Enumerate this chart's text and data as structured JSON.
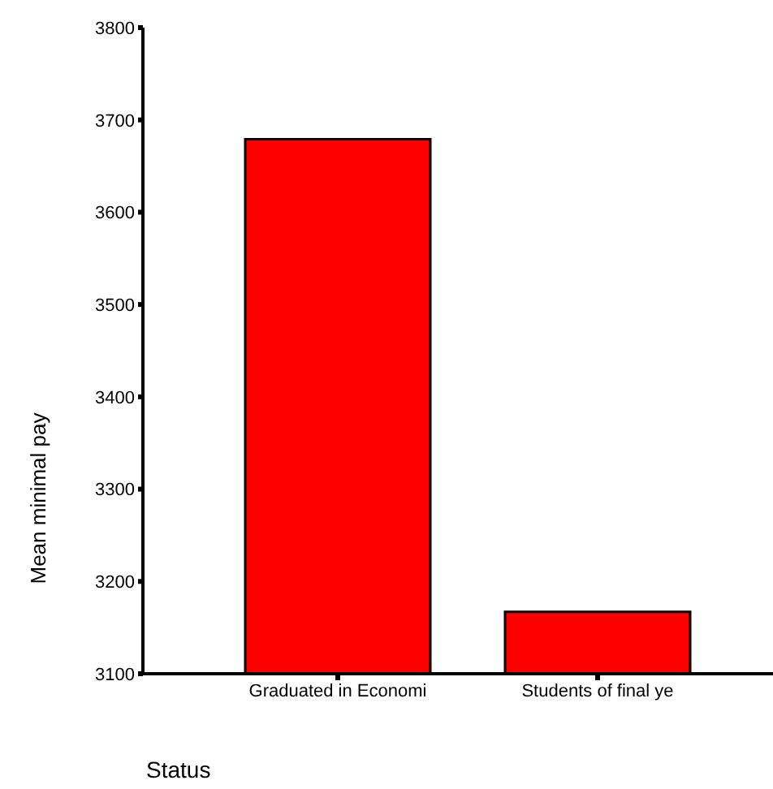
{
  "chart_data": {
    "type": "bar",
    "categories": [
      "Graduated in Economi",
      "Students of final ye"
    ],
    "values": [
      3679,
      3167
    ],
    "color": "#ff0000",
    "xlabel": "Status",
    "ylabel": "Mean minimal pay",
    "ylim": [
      3100,
      3800
    ],
    "yticks": [
      3100,
      3200,
      3300,
      3400,
      3500,
      3600,
      3700,
      3800
    ],
    "grid": false,
    "legend": false
  }
}
